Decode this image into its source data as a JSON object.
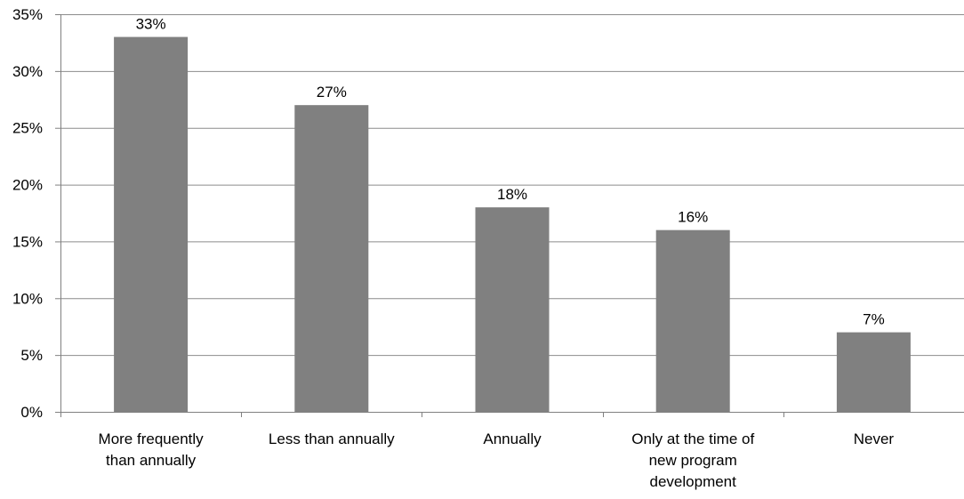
{
  "chart_data": {
    "type": "bar",
    "categories": [
      [
        "More frequently",
        "than annually"
      ],
      [
        "Less than annually"
      ],
      [
        "Annually"
      ],
      [
        "Only at the time of",
        "new program",
        "development"
      ],
      [
        "Never"
      ]
    ],
    "values": [
      33,
      27,
      18,
      16,
      7
    ],
    "data_labels": [
      "33%",
      "27%",
      "18%",
      "16%",
      "7%"
    ],
    "y_ticks": [
      0,
      5,
      10,
      15,
      20,
      25,
      30,
      35
    ],
    "y_tick_labels": [
      "0%",
      "5%",
      "10%",
      "15%",
      "20%",
      "25%",
      "30%",
      "35%"
    ],
    "ylim": [
      0,
      35
    ],
    "grid": true,
    "legend": "none",
    "title": "",
    "xlabel": "",
    "ylabel": "",
    "colors": {
      "bar": "#808080",
      "grid": "#8c8c8c",
      "axis": "#808080",
      "text": "#000000"
    }
  }
}
